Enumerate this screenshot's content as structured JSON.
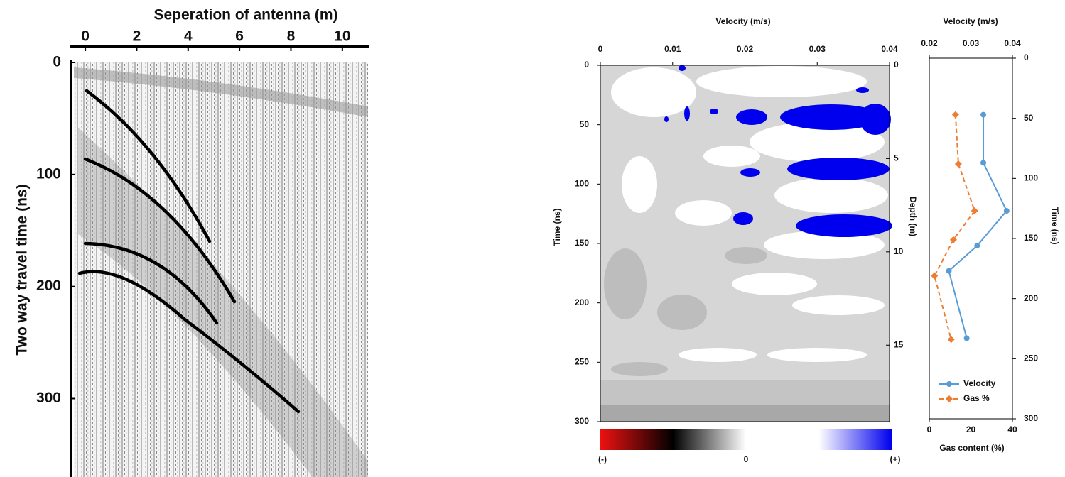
{
  "chart_data": [
    {
      "type": "gather",
      "xlabel": "Seperation of antenna (m)",
      "ylabel": "Two way travel time (ns)",
      "xlim": [
        -0.5,
        11
      ],
      "xticks": [
        0,
        2,
        4,
        6,
        8,
        10
      ],
      "ylim": [
        0,
        370
      ],
      "yticks": [
        0,
        100,
        200,
        300
      ]
    },
    {
      "type": "heatmap",
      "xlabel": "Velocity (m/s)",
      "ylabel": "Time (ns)",
      "y2label": "Depth (m)",
      "xlim": [
        0,
        0.04
      ],
      "xticks": [
        0,
        0.01,
        0.02,
        0.03,
        0.04
      ],
      "ylim": [
        0,
        300
      ],
      "yticks": [
        0,
        50,
        100,
        150,
        200,
        250,
        300
      ],
      "y2lim": [
        0,
        19.1
      ],
      "y2ticks": [
        0,
        5,
        10,
        15
      ],
      "colorbar": {
        "labels": [
          "(-)",
          "0",
          "(+)"
        ],
        "colors": [
          "#ee1111",
          "#000000",
          "#ffffff",
          "#ffffff",
          "#0000ee"
        ]
      }
    },
    {
      "type": "line",
      "xlabel": "Velocity (m/s)",
      "x2label": "Gas content (%)",
      "ylabel": "Time (ns)",
      "xlim": [
        0.02,
        0.04
      ],
      "xticks": [
        0.02,
        0.03,
        0.04
      ],
      "x2lim": [
        0,
        40
      ],
      "x2ticks": [
        0,
        20,
        40
      ],
      "ylim": [
        0,
        300
      ],
      "yticks": [
        0,
        50,
        100,
        150,
        200,
        250,
        300
      ],
      "legend": "lower center",
      "series": [
        {
          "name": "Velocity",
          "color": "#5b9bd5",
          "marker": "circle",
          "dash": false,
          "axis": "x",
          "values": [
            0.033,
            0.033,
            0.0386,
            0.0315,
            0.0247,
            0.029
          ],
          "y": [
            47,
            87,
            127,
            156,
            177,
            233
          ]
        },
        {
          "name": "Gas %",
          "color": "#ed7d31",
          "marker": "diamond",
          "dash": true,
          "axis": "x2",
          "values": [
            12.6,
            14,
            21.8,
            11.6,
            2.5,
            10.5
          ],
          "y": [
            47,
            88,
            127,
            151,
            181,
            234
          ]
        }
      ]
    }
  ]
}
